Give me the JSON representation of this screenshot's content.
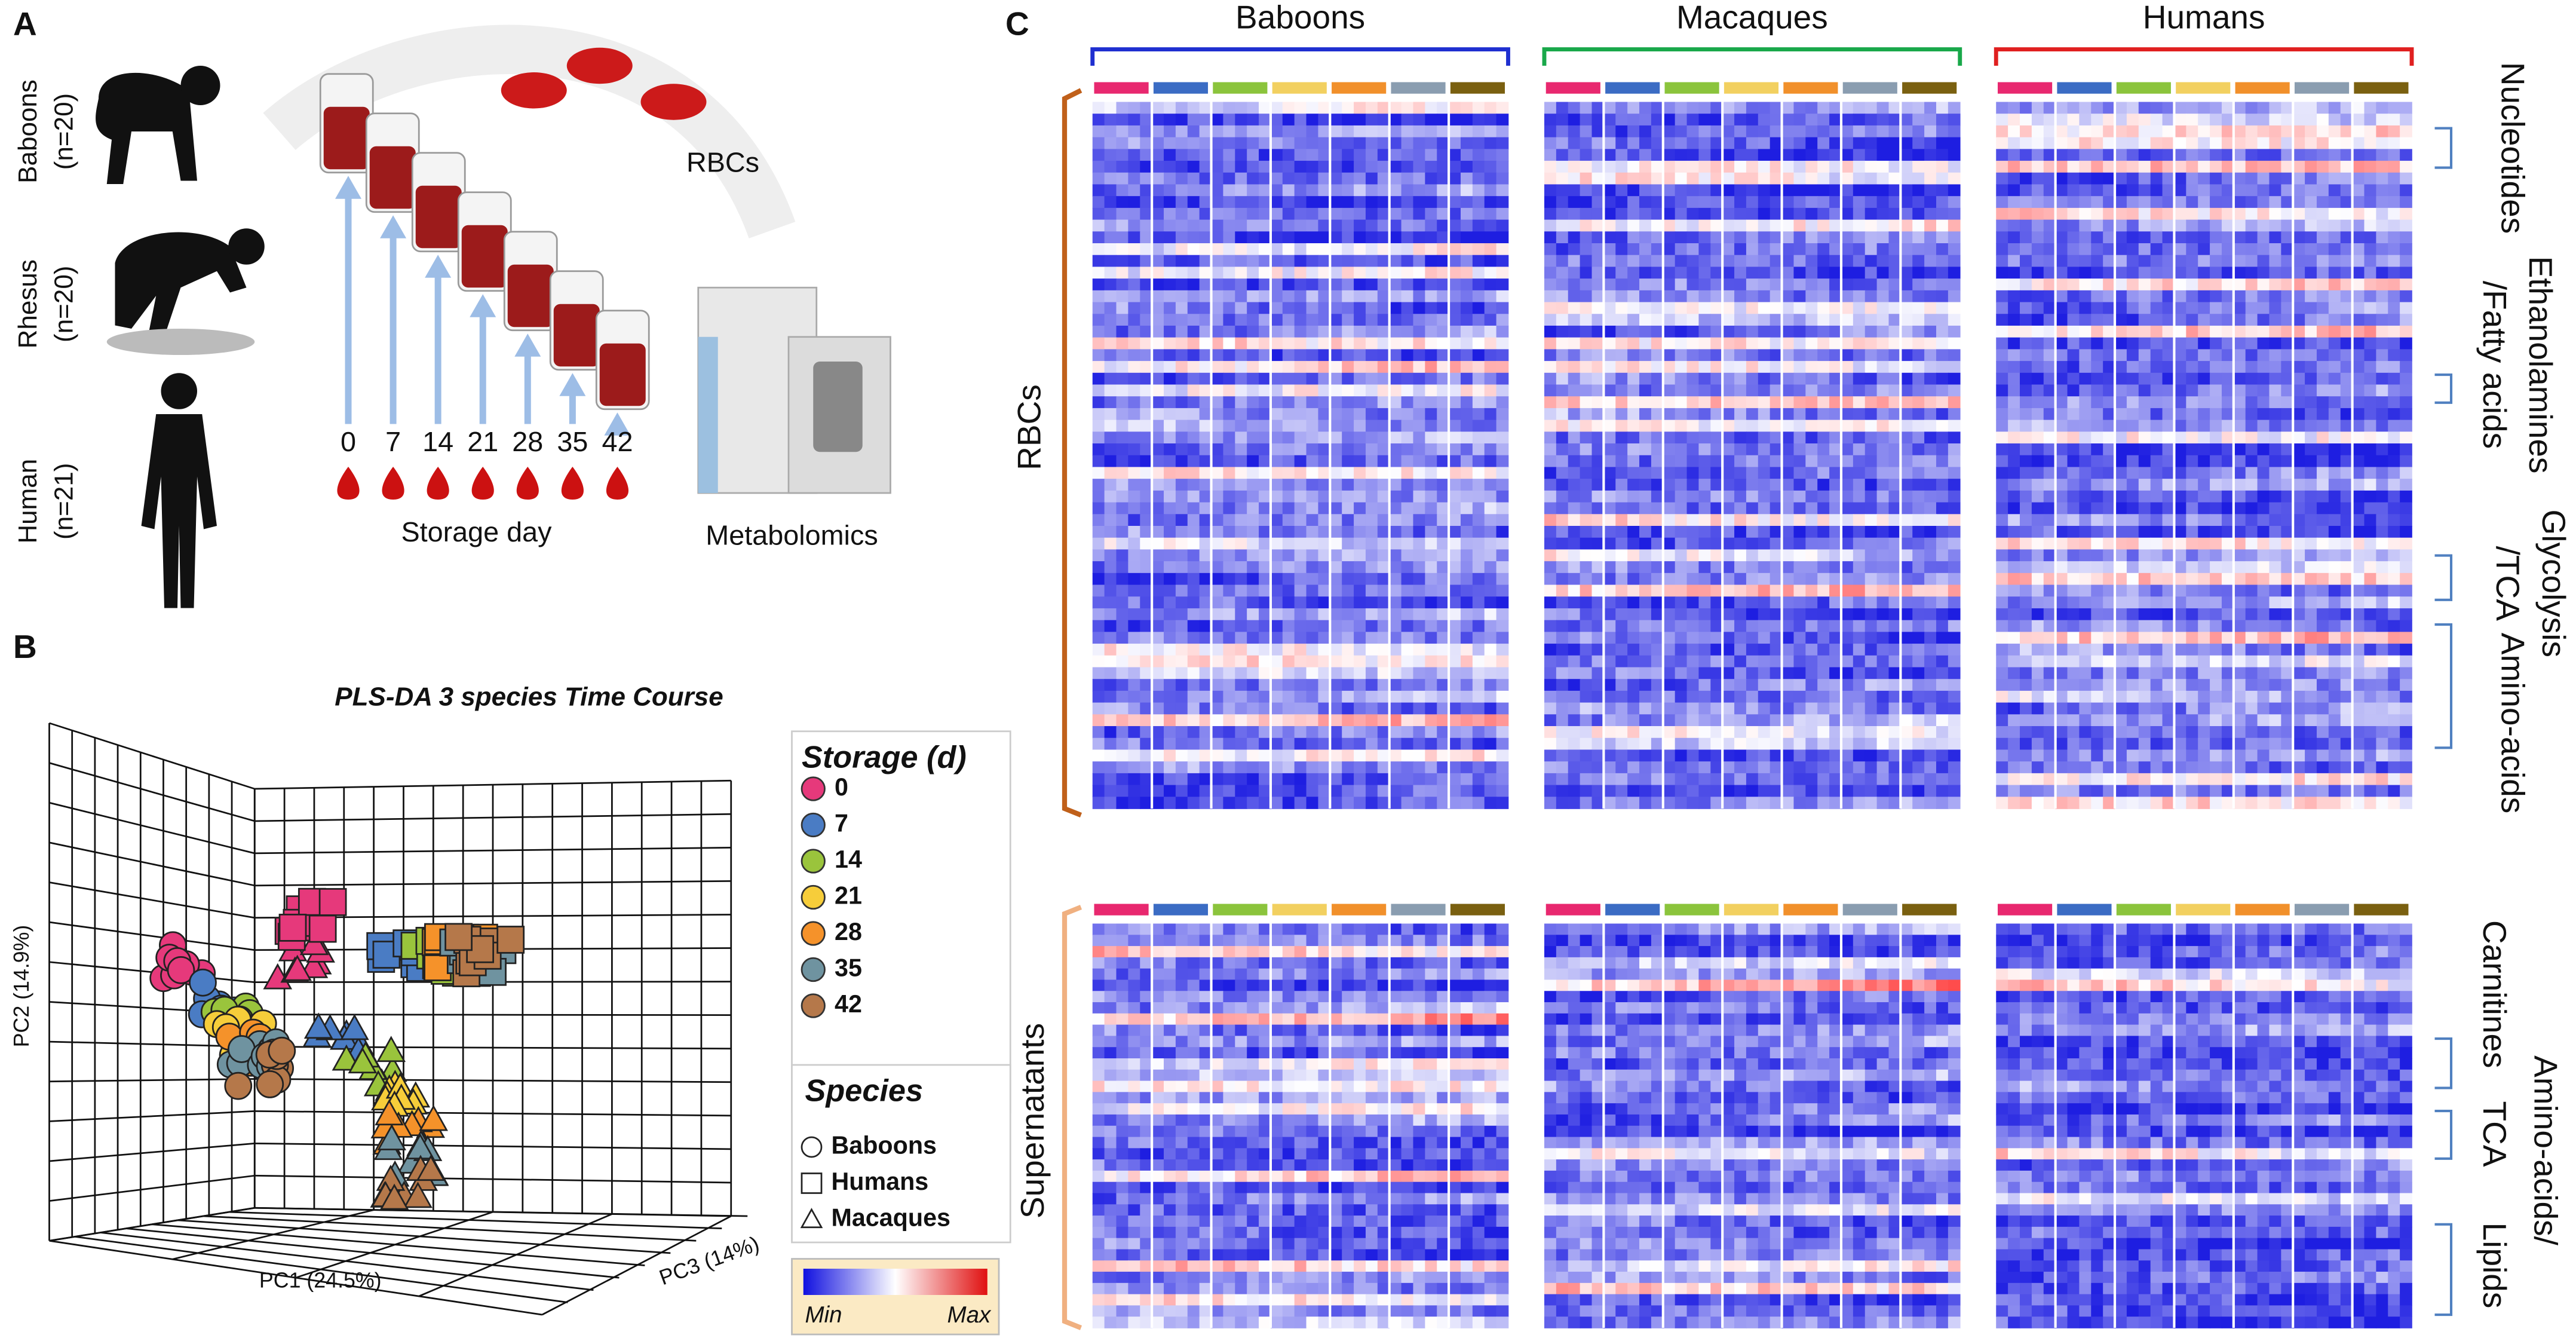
{
  "panel_a": {
    "label": "A",
    "species": [
      {
        "name": "Baboons",
        "n": "(n=20)"
      },
      {
        "name": "Rhesus",
        "n": "(n=20)"
      },
      {
        "name": "Human",
        "n": "(n=21)"
      }
    ],
    "storage_days": [
      0,
      7,
      14,
      21,
      28,
      35,
      42
    ],
    "storage_day_label": "Storage day",
    "rbc_label": "RBCs",
    "metabolomics_label": "Metabolomics"
  },
  "panel_b": {
    "label": "B",
    "title": "PLS-DA 3 species Time Course",
    "x_axis": "PC1 (24.5%)",
    "y_axis": "PC2 (14.9%)",
    "z_axis": "PC3 (14%)",
    "storage_legend": {
      "title": "Storage (d)",
      "items": [
        {
          "day": 0,
          "color": "#e6397b"
        },
        {
          "day": 7,
          "color": "#4a7cc4"
        },
        {
          "day": 14,
          "color": "#9ac43c"
        },
        {
          "day": 21,
          "color": "#f6cd3a"
        },
        {
          "day": 28,
          "color": "#f5922a"
        },
        {
          "day": 35,
          "color": "#6f93a0"
        },
        {
          "day": 42,
          "color": "#b5784a"
        }
      ]
    },
    "species_legend": {
      "title": "Species",
      "items": [
        "Baboons",
        "Humans",
        "Macaques"
      ]
    },
    "colorbar": {
      "min": "Min",
      "max": "Max"
    }
  },
  "panel_c": {
    "label": "C",
    "species": [
      "Baboons",
      "Macaques",
      "Humans"
    ],
    "rows": [
      {
        "name": "RBCs",
        "classes": [
          [
            "Nucleotides"
          ],
          [
            "Ethanolamines",
            "/Fatty acids"
          ],
          [
            "Glycolysis",
            "/TCA"
          ],
          [
            "Amino-acids"
          ]
        ]
      },
      {
        "name": "Supernatants",
        "classes": [
          [
            "Carnitines"
          ],
          [
            "Amino-acids/",
            "TCA"
          ],
          [
            "Lipids"
          ]
        ]
      }
    ]
  }
}
